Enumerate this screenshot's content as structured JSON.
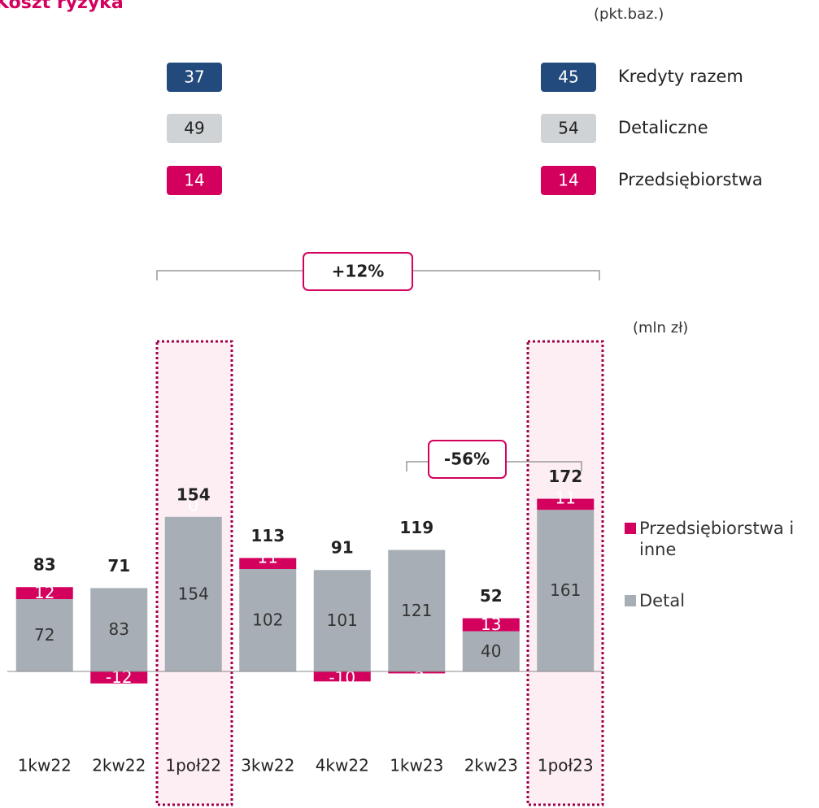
{
  "chart_data": {
    "type": "stacked-bar",
    "title": "Koszt ryzyka",
    "unit_label": "(mln zł)",
    "categories": [
      "1kw22",
      "2kw22",
      "1poł22",
      "3kw22",
      "4kw22",
      "1kw23",
      "2kw23",
      "1poł23"
    ],
    "series": [
      {
        "name": "Detal",
        "color": "#a7aeb5",
        "values": [
          72,
          83,
          154,
          102,
          101,
          121,
          40,
          161
        ]
      },
      {
        "name": "Przedsiębiorstwa i inne",
        "color": "#d4005e",
        "values": [
          12,
          -12,
          0,
          11,
          -10,
          -2,
          13,
          11
        ]
      }
    ],
    "totals": [
      83,
      71,
      154,
      113,
      91,
      119,
      52,
      172
    ],
    "ylim": [
      -30,
      200
    ],
    "annotations": [
      "+12%",
      "-56%"
    ],
    "bps_table": {
      "unit": "(pkt.baz.)",
      "rows": [
        {
          "label": "Kredyty razem",
          "color": "#234a7c",
          "values": [
            37,
            45
          ]
        },
        {
          "label": "Detaliczne",
          "color": "#cfd3d6",
          "values": [
            49,
            54
          ]
        },
        {
          "label": "Przedsiębiorstwa",
          "color": "#d4005e",
          "values": [
            14,
            14
          ]
        }
      ]
    }
  }
}
